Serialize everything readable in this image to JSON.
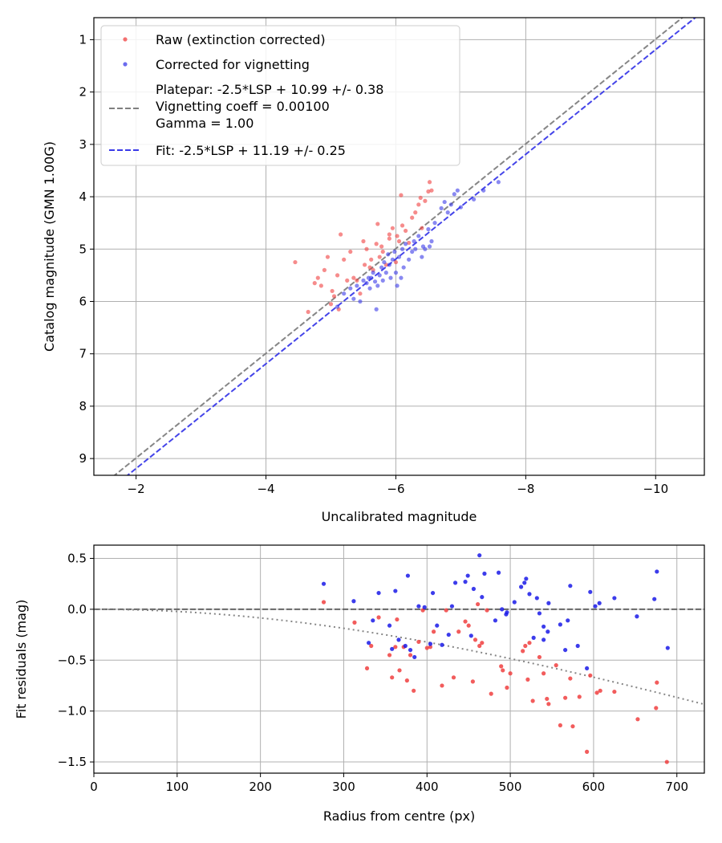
{
  "chart_data": [
    {
      "type": "scatter",
      "xlabel": "Uncalibrated magnitude",
      "ylabel": "Catalog magnitude (GMN 1.00G)",
      "xlim": [
        -1.35,
        -10.75
      ],
      "ylim": [
        9.32,
        0.58
      ],
      "xticks": [
        -2,
        -4,
        -6,
        -8,
        -10
      ],
      "xtick_labels": [
        "−2",
        "−4",
        "−6",
        "−8",
        "−10"
      ],
      "yticks": [
        1,
        2,
        3,
        4,
        5,
        6,
        7,
        8,
        9
      ],
      "ytick_labels": [
        "1",
        "2",
        "3",
        "4",
        "5",
        "6",
        "7",
        "8",
        "9"
      ],
      "grid": true,
      "legend": {
        "position": "top-left",
        "entries": [
          {
            "label": "Raw (extinction corrected)",
            "series": "raw"
          },
          {
            "label": "Corrected for vignetting",
            "series": "corrected"
          },
          {
            "label_lines": [
              "Platepar: -2.5*LSP + 10.99 +/- 0.38",
              "Vignetting coeff = 0.00100",
              "Gamma = 1.00"
            ],
            "series": "platepar"
          },
          {
            "label": "Fit: -2.5*LSP + 11.19 +/- 0.25",
            "series": "fit"
          }
        ]
      },
      "lines": [
        {
          "name": "platepar",
          "intercept": 10.99,
          "slope": 1,
          "color": "#808080",
          "style": "dashed"
        },
        {
          "name": "fit",
          "intercept": 11.19,
          "slope": 1,
          "color": "#3a3ae8",
          "style": "dashed"
        }
      ],
      "series": [
        {
          "name": "raw",
          "color": "#f04040",
          "points": [
            [
              -4.45,
              5.25
            ],
            [
              -4.65,
              6.2
            ],
            [
              -4.75,
              5.65
            ],
            [
              -4.8,
              5.55
            ],
            [
              -4.85,
              5.7
            ],
            [
              -4.9,
              5.4
            ],
            [
              -4.95,
              5.15
            ],
            [
              -5.0,
              6.05
            ],
            [
              -5.02,
              5.8
            ],
            [
              -5.05,
              5.9
            ],
            [
              -5.1,
              5.5
            ],
            [
              -5.12,
              6.15
            ],
            [
              -5.15,
              4.72
            ],
            [
              -5.2,
              5.2
            ],
            [
              -5.25,
              5.6
            ],
            [
              -5.3,
              5.05
            ],
            [
              -5.35,
              5.55
            ],
            [
              -5.4,
              5.6
            ],
            [
              -5.45,
              5.85
            ],
            [
              -5.5,
              4.85
            ],
            [
              -5.52,
              5.3
            ],
            [
              -5.55,
              5.0
            ],
            [
              -5.6,
              5.35
            ],
            [
              -5.65,
              5.4
            ],
            [
              -5.7,
              4.9
            ],
            [
              -5.72,
              4.52
            ],
            [
              -5.75,
              5.15
            ],
            [
              -5.78,
              4.95
            ],
            [
              -5.8,
              5.05
            ],
            [
              -5.85,
              5.3
            ],
            [
              -5.9,
              4.72
            ],
            [
              -5.95,
              4.6
            ],
            [
              -6.0,
              5.25
            ],
            [
              -6.05,
              4.85
            ],
            [
              -6.08,
              3.97
            ],
            [
              -6.1,
              4.55
            ],
            [
              -6.15,
              4.65
            ],
            [
              -6.2,
              4.88
            ],
            [
              -6.25,
              4.4
            ],
            [
              -6.3,
              4.3
            ],
            [
              -6.35,
              4.15
            ],
            [
              -6.38,
              4.02
            ],
            [
              -6.4,
              4.6
            ],
            [
              -6.45,
              4.08
            ],
            [
              -6.5,
              3.9
            ],
            [
              -6.52,
              3.72
            ],
            [
              -6.55,
              3.88
            ],
            [
              -6.02,
              4.75
            ],
            [
              -5.62,
              5.2
            ],
            [
              -5.9,
              4.8
            ]
          ]
        },
        {
          "name": "corrected",
          "color": "#3a3ae8",
          "points": [
            [
              -5.1,
              6.1
            ],
            [
              -5.2,
              5.85
            ],
            [
              -5.3,
              5.75
            ],
            [
              -5.35,
              5.95
            ],
            [
              -5.4,
              5.7
            ],
            [
              -5.45,
              6.0
            ],
            [
              -5.5,
              5.6
            ],
            [
              -5.55,
              5.65
            ],
            [
              -5.58,
              5.55
            ],
            [
              -5.6,
              5.75
            ],
            [
              -5.62,
              5.55
            ],
            [
              -5.65,
              5.45
            ],
            [
              -5.7,
              6.15
            ],
            [
              -5.72,
              5.7
            ],
            [
              -5.75,
              5.5
            ],
            [
              -5.78,
              5.35
            ],
            [
              -5.8,
              5.6
            ],
            [
              -5.82,
              5.25
            ],
            [
              -5.85,
              5.45
            ],
            [
              -5.88,
              5.1
            ],
            [
              -5.9,
              5.3
            ],
            [
              -5.92,
              5.55
            ],
            [
              -5.95,
              5.2
            ],
            [
              -5.98,
              5.05
            ],
            [
              -6.0,
              5.45
            ],
            [
              -6.02,
              5.7
            ],
            [
              -6.05,
              5.15
            ],
            [
              -6.08,
              5.55
            ],
            [
              -6.1,
              5.0
            ],
            [
              -6.12,
              5.35
            ],
            [
              -6.15,
              4.9
            ],
            [
              -6.2,
              5.2
            ],
            [
              -6.25,
              5.05
            ],
            [
              -6.28,
              4.85
            ],
            [
              -6.3,
              5.0
            ],
            [
              -6.35,
              4.75
            ],
            [
              -6.4,
              5.15
            ],
            [
              -6.42,
              4.95
            ],
            [
              -6.45,
              5.0
            ],
            [
              -6.5,
              4.62
            ],
            [
              -6.55,
              4.85
            ],
            [
              -6.6,
              4.5
            ],
            [
              -6.7,
              4.22
            ],
            [
              -6.75,
              4.1
            ],
            [
              -6.8,
              4.3
            ],
            [
              -6.85,
              4.15
            ],
            [
              -6.9,
              3.95
            ],
            [
              -6.95,
              3.88
            ],
            [
              -7.0,
              4.2
            ],
            [
              -7.2,
              4.05
            ],
            [
              -7.35,
              3.88
            ],
            [
              -7.58,
              3.72
            ],
            [
              -6.52,
              4.95
            ],
            [
              -5.68,
              5.62
            ]
          ]
        }
      ]
    },
    {
      "type": "scatter",
      "xlabel": "Radius from centre (px)",
      "ylabel": "Fit residuals (mag)",
      "xlim": [
        0,
        733
      ],
      "ylim": [
        -1.61,
        0.63
      ],
      "xticks": [
        0,
        100,
        200,
        300,
        400,
        500,
        600,
        700
      ],
      "xtick_labels": [
        "0",
        "100",
        "200",
        "300",
        "400",
        "500",
        "600",
        "700"
      ],
      "yticks": [
        0.5,
        0.0,
        -0.5,
        -1.0,
        -1.5
      ],
      "ytick_labels": [
        "0.5",
        "0.0",
        "−0.5",
        "−1.0",
        "−1.5"
      ],
      "grid": true,
      "lines": [
        {
          "name": "zero",
          "y": 0,
          "color": "#606060",
          "style": "dashed"
        },
        {
          "name": "vignetting-model",
          "model": "vignetting",
          "coeff": 0.001,
          "color": "#808080",
          "style": "dotted"
        }
      ],
      "series": [
        {
          "name": "raw",
          "color": "#f04040",
          "points": [
            [
              276,
              0.07
            ],
            [
              313,
              -0.13
            ],
            [
              328,
              -0.58
            ],
            [
              333,
              -0.36
            ],
            [
              342,
              -0.08
            ],
            [
              355,
              -0.45
            ],
            [
              358,
              -0.67
            ],
            [
              362,
              -0.37
            ],
            [
              364,
              -0.1
            ],
            [
              367,
              -0.6
            ],
            [
              372,
              -0.37
            ],
            [
              376,
              -0.7
            ],
            [
              380,
              -0.45
            ],
            [
              384,
              -0.8
            ],
            [
              390,
              -0.32
            ],
            [
              395,
              -0.01
            ],
            [
              400,
              -0.38
            ],
            [
              404,
              -0.37
            ],
            [
              408,
              -0.22
            ],
            [
              418,
              -0.75
            ],
            [
              423,
              -0.01
            ],
            [
              432,
              -0.67
            ],
            [
              438,
              -0.22
            ],
            [
              446,
              -0.12
            ],
            [
              450,
              -0.16
            ],
            [
              455,
              -0.71
            ],
            [
              458,
              -0.3
            ],
            [
              461,
              0.05
            ],
            [
              463,
              -0.36
            ],
            [
              466,
              -0.33
            ],
            [
              472,
              -0.01
            ],
            [
              477,
              -0.83
            ],
            [
              489,
              -0.56
            ],
            [
              491,
              -0.6
            ],
            [
              496,
              -0.77
            ],
            [
              500,
              -0.63
            ],
            [
              515,
              -0.41
            ],
            [
              518,
              -0.36
            ],
            [
              521,
              -0.69
            ],
            [
              527,
              -0.9
            ],
            [
              535,
              -0.47
            ],
            [
              540,
              -0.63
            ],
            [
              544,
              -0.88
            ],
            [
              546,
              -0.93
            ],
            [
              555,
              -0.55
            ],
            [
              560,
              -1.14
            ],
            [
              566,
              -0.87
            ],
            [
              572,
              -0.68
            ],
            [
              575,
              -1.15
            ],
            [
              583,
              -0.86
            ],
            [
              592,
              -1.4
            ],
            [
              596,
              -0.65
            ],
            [
              604,
              -0.82
            ],
            [
              608,
              -0.8
            ],
            [
              625,
              -0.81
            ],
            [
              653,
              -1.08
            ],
            [
              676,
              -0.72
            ],
            [
              675,
              -0.97
            ],
            [
              688,
              -1.5
            ],
            [
              523,
              -0.33
            ]
          ]
        },
        {
          "name": "corrected",
          "color": "#1a1ae8",
          "points": [
            [
              276,
              0.25
            ],
            [
              312,
              0.08
            ],
            [
              330,
              -0.33
            ],
            [
              335,
              -0.11
            ],
            [
              342,
              0.16
            ],
            [
              355,
              -0.16
            ],
            [
              358,
              -0.39
            ],
            [
              362,
              0.18
            ],
            [
              366,
              -0.3
            ],
            [
              374,
              -0.36
            ],
            [
              377,
              0.33
            ],
            [
              380,
              -0.4
            ],
            [
              385,
              -0.47
            ],
            [
              390,
              0.03
            ],
            [
              397,
              0.02
            ],
            [
              404,
              -0.34
            ],
            [
              407,
              0.16
            ],
            [
              412,
              -0.16
            ],
            [
              418,
              -0.35
            ],
            [
              426,
              -0.25
            ],
            [
              430,
              0.03
            ],
            [
              434,
              0.26
            ],
            [
              446,
              0.27
            ],
            [
              449,
              0.33
            ],
            [
              453,
              -0.26
            ],
            [
              456,
              0.2
            ],
            [
              463,
              0.53
            ],
            [
              466,
              0.12
            ],
            [
              469,
              0.35
            ],
            [
              482,
              -0.11
            ],
            [
              486,
              0.36
            ],
            [
              490,
              0.0
            ],
            [
              495,
              -0.05
            ],
            [
              496,
              -0.03
            ],
            [
              505,
              0.07
            ],
            [
              513,
              0.22
            ],
            [
              517,
              0.26
            ],
            [
              519,
              0.3
            ],
            [
              523,
              0.15
            ],
            [
              528,
              -0.28
            ],
            [
              532,
              0.11
            ],
            [
              535,
              -0.04
            ],
            [
              540,
              -0.3
            ],
            [
              545,
              -0.22
            ],
            [
              546,
              0.06
            ],
            [
              560,
              -0.15
            ],
            [
              566,
              -0.4
            ],
            [
              569,
              -0.11
            ],
            [
              572,
              0.23
            ],
            [
              581,
              -0.36
            ],
            [
              592,
              -0.58
            ],
            [
              596,
              0.17
            ],
            [
              602,
              0.03
            ],
            [
              607,
              0.06
            ],
            [
              625,
              0.11
            ],
            [
              652,
              -0.07
            ],
            [
              673,
              0.1
            ],
            [
              676,
              0.37
            ],
            [
              689,
              -0.38
            ],
            [
              540,
              -0.17
            ]
          ]
        }
      ]
    }
  ]
}
